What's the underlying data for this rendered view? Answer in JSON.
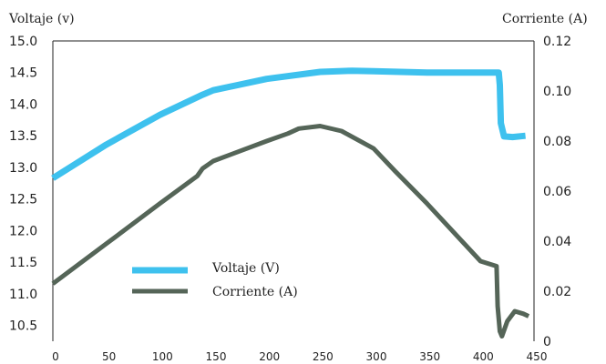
{
  "chart_data": {
    "type": "line",
    "title": "",
    "xlabel": "",
    "ylabel_left": "Voltaje (v)",
    "ylabel_right": "Corriente (A)",
    "xlim": [
      0,
      450
    ],
    "ylim_left": [
      10.25,
      15.0
    ],
    "ylim_right": [
      0,
      0.12
    ],
    "x_ticks": [
      0,
      50,
      100,
      150,
      200,
      250,
      300,
      350,
      400,
      450
    ],
    "y_left_ticks": [
      {
        "value": 15.0,
        "label": "15.0"
      },
      {
        "value": 14.5,
        "label": "14.5"
      },
      {
        "value": 14.0,
        "label": "14.0"
      },
      {
        "value": 13.5,
        "label": "13.5"
      },
      {
        "value": 13.0,
        "label": "13.0"
      },
      {
        "value": 12.5,
        "label": "12.5"
      },
      {
        "value": 12.0,
        "label": "12.0"
      },
      {
        "value": 11.5,
        "label": "11.5"
      },
      {
        "value": 11.0,
        "label": "11.0"
      },
      {
        "value": 10.5,
        "label": "10.5"
      }
    ],
    "y_right_ticks": [
      {
        "value": 0.12,
        "label": "0.12"
      },
      {
        "value": 0.1,
        "label": "0.10"
      },
      {
        "value": 0.08,
        "label": "0.08"
      },
      {
        "value": 0.06,
        "label": "0.06"
      },
      {
        "value": 0.04,
        "label": "0.04"
      },
      {
        "value": 0.02,
        "label": "0.02"
      },
      {
        "value": 0,
        "label": "0"
      }
    ],
    "grid": false,
    "legend_position": "bottom-left",
    "series": [
      {
        "name": "Voltaje (V)",
        "axis": "left",
        "color": "#3ec1ee",
        "points": [
          [
            0,
            12.83
          ],
          [
            50,
            13.36
          ],
          [
            100,
            13.83
          ],
          [
            140,
            14.15
          ],
          [
            150,
            14.22
          ],
          [
            200,
            14.4
          ],
          [
            250,
            14.51
          ],
          [
            280,
            14.53
          ],
          [
            300,
            14.52
          ],
          [
            350,
            14.5
          ],
          [
            400,
            14.5
          ],
          [
            417,
            14.5
          ],
          [
            418,
            14.3
          ],
          [
            419,
            13.7
          ],
          [
            422,
            13.49
          ],
          [
            430,
            13.48
          ],
          [
            442,
            13.5
          ]
        ]
      },
      {
        "name": "Corriente (A)",
        "axis": "right",
        "color": "#556558",
        "points": [
          [
            0,
            0.023
          ],
          [
            50,
            0.039
          ],
          [
            100,
            0.055
          ],
          [
            135,
            0.066
          ],
          [
            140,
            0.069
          ],
          [
            150,
            0.072
          ],
          [
            200,
            0.08
          ],
          [
            220,
            0.083
          ],
          [
            230,
            0.085
          ],
          [
            250,
            0.086
          ],
          [
            270,
            0.084
          ],
          [
            300,
            0.077
          ],
          [
            320,
            0.068
          ],
          [
            350,
            0.055
          ],
          [
            400,
            0.032
          ],
          [
            415,
            0.03
          ],
          [
            416,
            0.014
          ],
          [
            418,
            0.004
          ],
          [
            420,
            0.002
          ],
          [
            425,
            0.008
          ],
          [
            432,
            0.012
          ],
          [
            440,
            0.011
          ],
          [
            445,
            0.01
          ]
        ]
      }
    ]
  }
}
